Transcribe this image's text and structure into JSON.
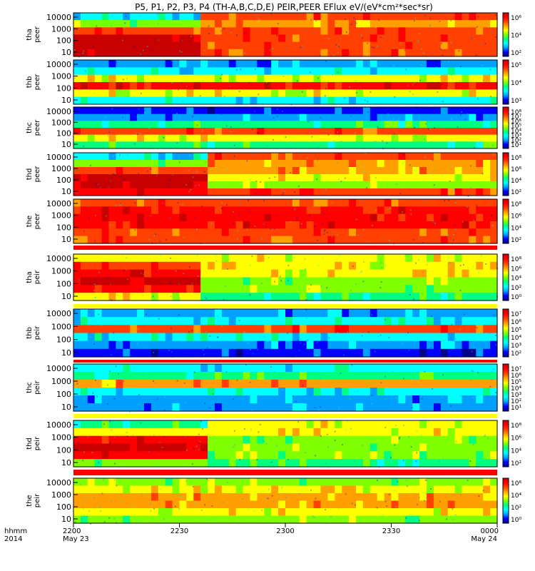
{
  "chart_data": {
    "type": "heatmap",
    "title": "P5, P1, P2, P3, P4 (TH-A,B,C,D,E) PEIR,PEER EFlux eV/(eV*cm²*sec*sr)",
    "x_ticks": [
      "2200",
      "2230",
      "2300",
      "2330",
      "0000"
    ],
    "x_tick_dates": {
      "start": "May 23",
      "end": "May 24"
    },
    "x_axis_labels": {
      "line1": "hhmm",
      "line2": "2014"
    },
    "y_scale": "log",
    "panels": [
      {
        "probe": "tha",
        "species": "peer",
        "y_ticks": [
          "10000",
          "1000",
          "100",
          "10"
        ],
        "cb_ticks": [
          "10⁶",
          "10⁴",
          "10²"
        ],
        "transition_time": "2236"
      },
      {
        "probe": "thb",
        "species": "peer",
        "y_ticks": [
          "10000",
          "1000",
          "100",
          "10"
        ],
        "cb_ticks": [
          "10⁵",
          "10⁴",
          "10³"
        ]
      },
      {
        "probe": "thc",
        "species": "peer",
        "y_ticks": [
          "10000",
          "1000",
          "100",
          "10"
        ],
        "cb_ticks": [
          "10⁸",
          "10⁷",
          "10⁶",
          "10⁵",
          "10⁴",
          "10³",
          "10²",
          "10¹"
        ]
      },
      {
        "probe": "thd",
        "species": "peer",
        "y_ticks": [
          "10000",
          "1000",
          "100",
          "10"
        ],
        "cb_ticks": [
          "10⁸",
          "10⁶",
          "10⁴",
          "10²"
        ],
        "transition_time": "2237"
      },
      {
        "probe": "the",
        "species": "peer",
        "y_ticks": [
          "10000",
          "1000",
          "100",
          "10"
        ],
        "cb_ticks": [
          "10⁸",
          "10⁶",
          "10⁴",
          "10²"
        ]
      },
      {
        "probe": "tha",
        "species": "peir",
        "y_ticks": [
          "10000",
          "1000",
          "100",
          "10"
        ],
        "cb_ticks": [
          "10⁸",
          "10⁶",
          "10⁴",
          "10²",
          "10⁰"
        ],
        "transition_time": "2236"
      },
      {
        "probe": "thb",
        "species": "peir",
        "y_ticks": [
          "10000",
          "1000",
          "100",
          "10"
        ],
        "cb_ticks": [
          "10⁷",
          "10⁶",
          "10⁵",
          "10⁴",
          "10³",
          "10²"
        ]
      },
      {
        "probe": "thc",
        "species": "peir",
        "y_ticks": [
          "10000",
          "1000",
          "100",
          "10"
        ],
        "cb_ticks": [
          "10⁷",
          "10⁶",
          "10⁵",
          "10⁴",
          "10³",
          "10²",
          "10¹"
        ]
      },
      {
        "probe": "thd",
        "species": "peir",
        "y_ticks": [
          "10000",
          "1000",
          "100",
          "10"
        ],
        "cb_ticks": [
          "10⁸",
          "10⁶",
          "10⁴",
          "10²"
        ],
        "transition_time": "2237"
      },
      {
        "probe": "the",
        "species": "peir",
        "y_ticks": [
          "10000",
          "1000",
          "100",
          "10"
        ],
        "cb_ticks": [
          "10⁶",
          "10⁴",
          "10²",
          "10⁰"
        ]
      }
    ]
  },
  "colors": {
    "scale": [
      "#00008b",
      "#0000ff",
      "#00a0ff",
      "#00ffff",
      "#00ff80",
      "#80ff00",
      "#ffff00",
      "#ffa000",
      "#ff4000",
      "#ff0000",
      "#c80000"
    ],
    "fill": "#000000"
  }
}
